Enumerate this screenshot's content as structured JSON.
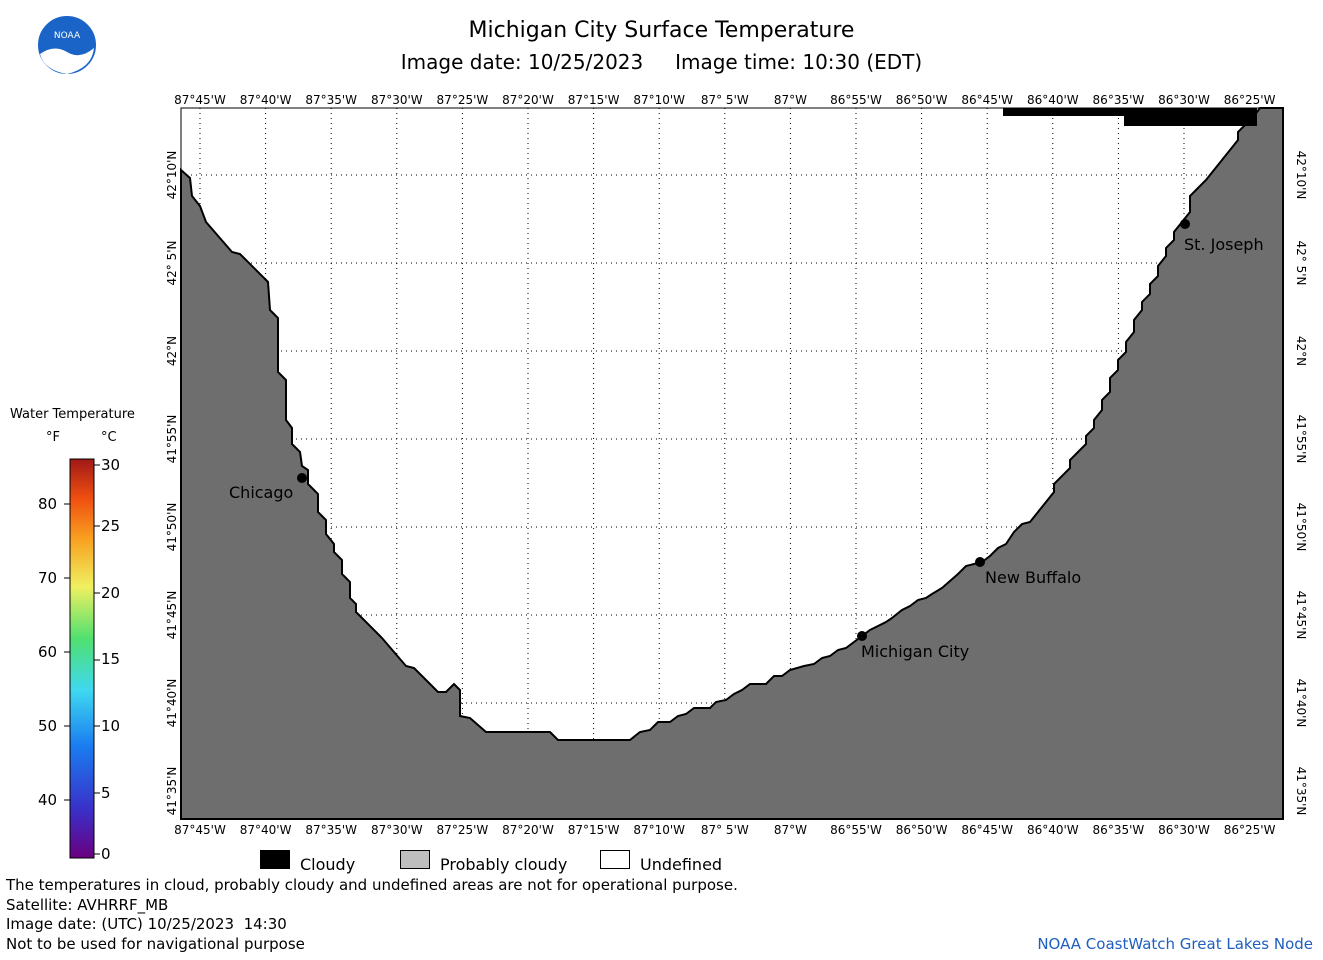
{
  "header": {
    "title": "Michigan City Surface Temperature",
    "image_date_label": "Image date:",
    "image_date": "10/25/2023",
    "image_time_label": "Image time:",
    "image_time": "10:30 (EDT)"
  },
  "map": {
    "lon_labels": [
      "87°45'W",
      "87°40'W",
      "87°35'W",
      "87°30'W",
      "87°25'W",
      "87°20'W",
      "87°15'W",
      "87°10'W",
      "87° 5'W",
      "87°W",
      "86°55'W",
      "86°50'W",
      "86°45'W",
      "86°40'W",
      "86°35'W",
      "86°30'W",
      "86°25'W"
    ],
    "lat_labels": [
      "42°10'N",
      "42° 5'N",
      "42°N",
      "41°55'N",
      "41°50'N",
      "41°45'N",
      "41°40'N",
      "41°35'N"
    ],
    "cities": [
      {
        "name": "Chicago"
      },
      {
        "name": "St. Joseph"
      },
      {
        "name": "New Buffalo"
      },
      {
        "name": "Michigan City"
      }
    ],
    "colors": {
      "land": "#6e6e6e",
      "cloudy": "#000000",
      "probably_cloudy": "#bebebe",
      "undefined": "#ffffff"
    }
  },
  "scale": {
    "title": "Water Temperature",
    "unit_f": "°F",
    "unit_c": "°C",
    "f_labels": [
      "80",
      "70",
      "60",
      "50",
      "40"
    ],
    "c_labels": [
      "30",
      "25",
      "20",
      "15",
      "10",
      "5",
      "0"
    ]
  },
  "legend": {
    "cloudy": "Cloudy",
    "probably_cloudy": "Probably cloudy",
    "undefined": "Undefined"
  },
  "footer": {
    "note": "The temperatures in cloud, probably cloudy and undefined areas are not for operational purpose.",
    "satellite": "Satellite: AVHRRF_MB",
    "utc_date": "Image date: (UTC) 10/25/2023  14:30",
    "nav_warning": "Not to be used for navigational purpose",
    "credit": "NOAA CoastWatch Great Lakes Node"
  }
}
